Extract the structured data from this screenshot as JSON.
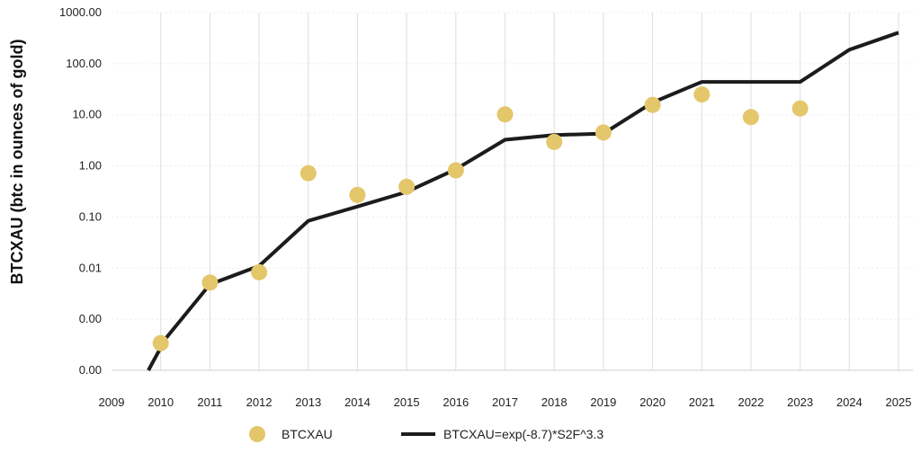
{
  "chart_data": {
    "type": "scatter",
    "ylabel": "BTCXAU (btc in ounces of gold)",
    "xlabel": "",
    "title": "",
    "y_scale": "log",
    "xlim": [
      2009,
      2025
    ],
    "ylim_log10": [
      -4,
      3
    ],
    "x_ticks": [
      "2009",
      "2010",
      "2011",
      "2012",
      "2013",
      "2014",
      "2015",
      "2016",
      "2017",
      "2018",
      "2019",
      "2020",
      "2021",
      "2022",
      "2023",
      "2024",
      "2025"
    ],
    "y_ticks": [
      {
        "log10": 3,
        "label": "1000.00"
      },
      {
        "log10": 2,
        "label": "100.00"
      },
      {
        "log10": 1,
        "label": "10.00"
      },
      {
        "log10": 0,
        "label": "1.00"
      },
      {
        "log10": -1,
        "label": "0.10"
      },
      {
        "log10": -2,
        "label": "0.01"
      },
      {
        "log10": -3,
        "label": "0.00"
      },
      {
        "log10": -4,
        "label": "0.00"
      }
    ],
    "grid": {
      "x": true,
      "y": true
    },
    "legend_position": "bottom",
    "series": [
      {
        "name": "BTCXAU",
        "kind": "scatter",
        "color": "#E3C76A",
        "points": [
          {
            "x": 2010,
            "y": 0.00034
          },
          {
            "x": 2011,
            "y": 0.0052
          },
          {
            "x": 2012,
            "y": 0.0083
          },
          {
            "x": 2013,
            "y": 0.72
          },
          {
            "x": 2014,
            "y": 0.27
          },
          {
            "x": 2015,
            "y": 0.39
          },
          {
            "x": 2016,
            "y": 0.82
          },
          {
            "x": 2017,
            "y": 10.2
          },
          {
            "x": 2018,
            "y": 2.95
          },
          {
            "x": 2019,
            "y": 4.5
          },
          {
            "x": 2020,
            "y": 15.6
          },
          {
            "x": 2021,
            "y": 25.0
          },
          {
            "x": 2022,
            "y": 9.0
          },
          {
            "x": 2023,
            "y": 13.3
          }
        ]
      },
      {
        "name": "BTCXAU=exp(-8.7)*S2F^3.3",
        "kind": "line",
        "color": "#1C1C1C",
        "points": [
          {
            "x": 2009.75,
            "y": 0.0001
          },
          {
            "x": 2010.1,
            "y": 0.00042
          },
          {
            "x": 2011,
            "y": 0.0048
          },
          {
            "x": 2012,
            "y": 0.011
          },
          {
            "x": 2013,
            "y": 0.084
          },
          {
            "x": 2014,
            "y": 0.16
          },
          {
            "x": 2015,
            "y": 0.31
          },
          {
            "x": 2016,
            "y": 0.86
          },
          {
            "x": 2017,
            "y": 3.25
          },
          {
            "x": 2018,
            "y": 4.0
          },
          {
            "x": 2019,
            "y": 4.3
          },
          {
            "x": 2020,
            "y": 17.4
          },
          {
            "x": 2021,
            "y": 44.0
          },
          {
            "x": 2022,
            "y": 44.0
          },
          {
            "x": 2023,
            "y": 44.0
          },
          {
            "x": 2024,
            "y": 188.0
          },
          {
            "x": 2025,
            "y": 405.0
          }
        ]
      }
    ]
  }
}
